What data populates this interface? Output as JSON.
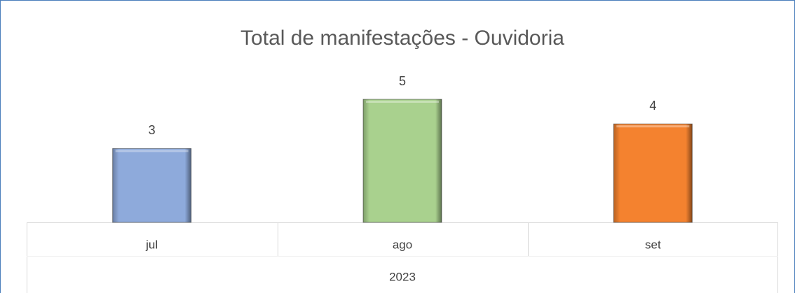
{
  "chart_data": {
    "type": "bar",
    "title": "Total de manifestações - Ouvidoria",
    "categories": [
      "jul",
      "ago",
      "set"
    ],
    "group": "2023",
    "values": [
      3,
      5,
      4
    ],
    "colors": [
      "#8eaadb",
      "#a9d18e",
      "#f4822f"
    ]
  }
}
